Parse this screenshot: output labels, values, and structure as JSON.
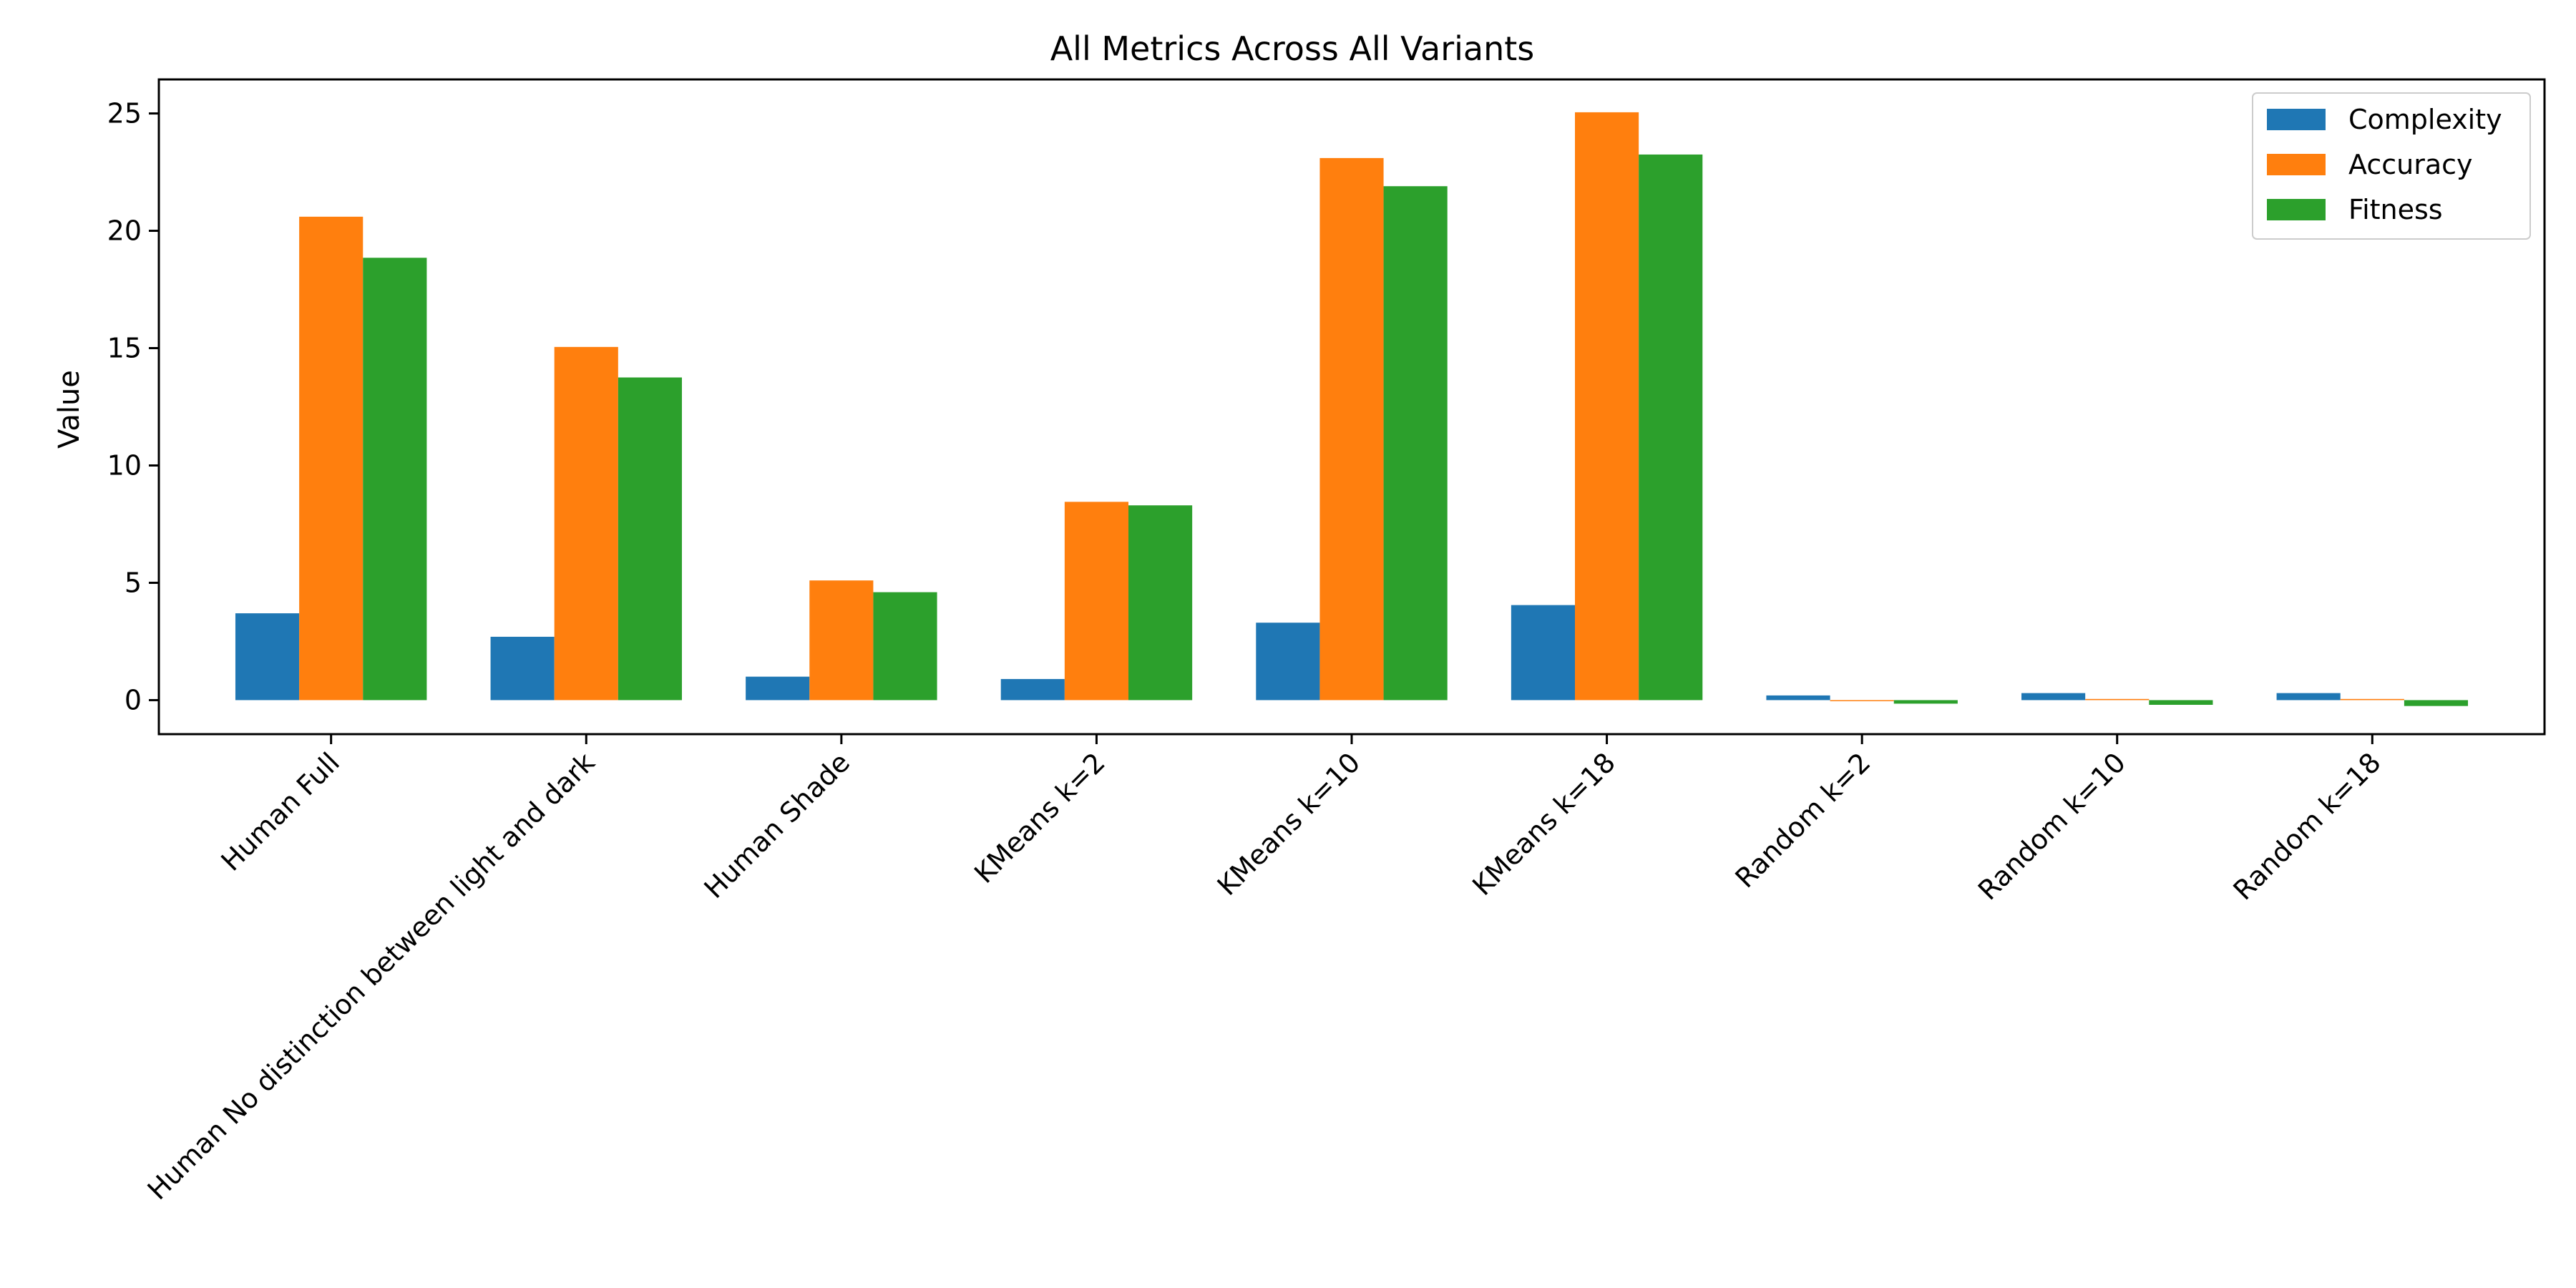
{
  "chart_data": {
    "type": "bar",
    "title": "All Metrics Across All Variants",
    "xlabel": "",
    "ylabel": "Value",
    "ylim": [
      -1.45,
      26.45
    ],
    "yticks": [
      0,
      5,
      10,
      15,
      20,
      25
    ],
    "grid": false,
    "legend_position": "upper right",
    "categories": [
      "Human Full",
      "Human No distinction between light and dark",
      "Human Shade",
      "KMeans k=2",
      "KMeans k=10",
      "KMeans k=18",
      "Random k=2",
      "Random k=10",
      "Random k=18"
    ],
    "series": [
      {
        "name": "Complexity",
        "color": "#1f77b4",
        "values": [
          3.7,
          2.7,
          1.0,
          0.9,
          3.3,
          4.05,
          0.2,
          0.3,
          0.3
        ]
      },
      {
        "name": "Accuracy",
        "color": "#ff7f0e",
        "values": [
          20.6,
          15.05,
          5.1,
          8.45,
          23.1,
          25.05,
          0.0,
          0.05,
          0.05
        ]
      },
      {
        "name": "Fitness",
        "color": "#2ca02c",
        "values": [
          18.85,
          13.75,
          4.6,
          8.3,
          21.9,
          23.25,
          -0.15,
          -0.2,
          -0.25
        ]
      }
    ]
  }
}
